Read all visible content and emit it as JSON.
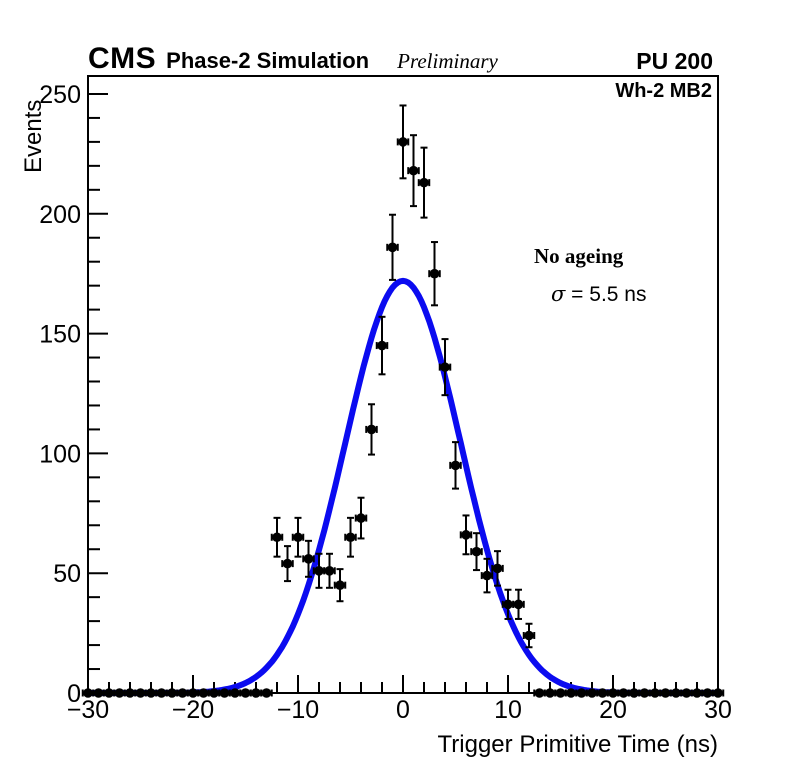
{
  "header": {
    "experiment": "CMS",
    "program": "Phase-2 Simulation",
    "status": "Preliminary",
    "pileup": "PU 200"
  },
  "annotations": {
    "chamber": "Wh-2 MB2",
    "ageing_scenario": "No ageing",
    "sigma_symbol": "σ",
    "sigma_value": " = 5.5 ns"
  },
  "chart_data": {
    "type": "scatter",
    "title": "",
    "xlabel": "Trigger Primitive Time (ns)",
    "ylabel": "Events",
    "xlim": [
      -30,
      30
    ],
    "ylim": [
      0,
      257.5
    ],
    "x_major_ticks": [
      -30,
      -20,
      -10,
      0,
      10,
      20,
      30
    ],
    "x_minor_step": 2,
    "y_major_ticks": [
      0,
      50,
      100,
      150,
      200,
      250
    ],
    "y_minor_step": 10,
    "grid": false,
    "bin_half_width": 0.5,
    "marker_color": "#000000",
    "series": [
      {
        "name": "trigger-primitive-time-histogram",
        "marker": "filled-circle",
        "x": [
          -30,
          -29,
          -28,
          -27,
          -26,
          -25,
          -24,
          -23,
          -22,
          -21,
          -20,
          -19,
          -18,
          -17,
          -16,
          -15,
          -14,
          -13,
          -12,
          -11,
          -10,
          -9,
          -8,
          -7,
          -6,
          -5,
          -4,
          -3,
          -2,
          -1,
          0,
          1,
          2,
          3,
          4,
          5,
          6,
          7,
          8,
          9,
          10,
          11,
          12,
          13,
          14,
          15,
          16,
          17,
          18,
          19,
          20,
          21,
          22,
          23,
          24,
          25,
          26,
          27,
          28,
          29,
          30
        ],
        "y": [
          0,
          0,
          0,
          0,
          0,
          0,
          0,
          0,
          0,
          0,
          0,
          0,
          0,
          0,
          0,
          0,
          0,
          0,
          65,
          54,
          65,
          56,
          51,
          51,
          45,
          65,
          73,
          110,
          145,
          186,
          230,
          218,
          213,
          175,
          136,
          95,
          66,
          59,
          49,
          52,
          37,
          37,
          24,
          0,
          0,
          0,
          0,
          0,
          0,
          0,
          0,
          0,
          0,
          0,
          0,
          0,
          0,
          0,
          0,
          0,
          0
        ],
        "yerr": [
          0,
          0,
          0,
          0,
          0,
          0,
          0,
          0,
          0,
          0,
          0,
          0,
          0,
          0,
          0,
          0,
          0,
          0,
          8.1,
          7.3,
          8.1,
          7.5,
          7.1,
          7.1,
          6.7,
          8.1,
          8.5,
          10.5,
          12,
          13.6,
          15.2,
          14.8,
          14.6,
          13.2,
          11.7,
          9.7,
          8.1,
          7.7,
          7,
          7.2,
          6.1,
          6.1,
          4.9,
          0,
          0,
          0,
          0,
          0,
          0,
          0,
          0,
          0,
          0,
          0,
          0,
          0,
          0,
          0,
          0,
          0,
          0
        ]
      }
    ],
    "fit": {
      "name": "gaussian-fit",
      "type": "gaussian",
      "amplitude": 172,
      "mean": 0,
      "sigma": 5.5,
      "color": "#0b0bf0"
    }
  }
}
